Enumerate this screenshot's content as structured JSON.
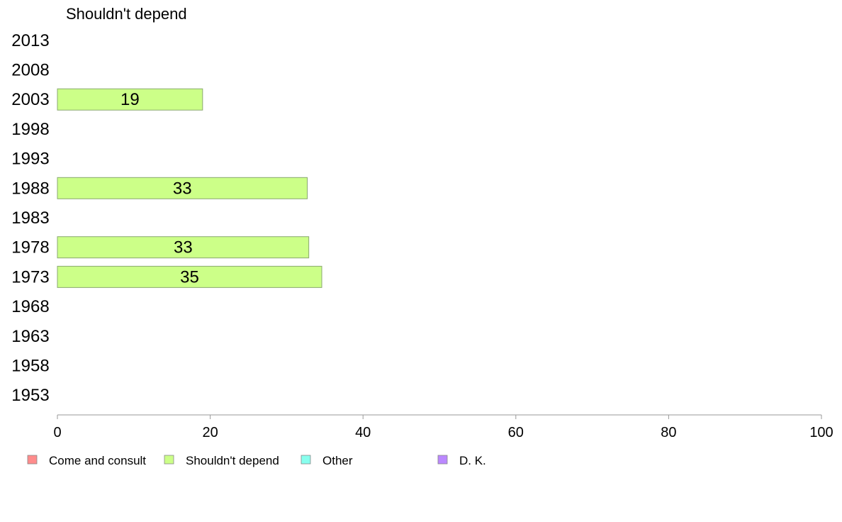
{
  "chart_data": {
    "type": "bar",
    "orientation": "horizontal",
    "panel_title": "Shouldn't depend",
    "categories": [
      "2013",
      "2008",
      "2003",
      "1998",
      "1993",
      "1988",
      "1983",
      "1978",
      "1973",
      "1968",
      "1963",
      "1958",
      "1953"
    ],
    "series": [
      {
        "name": "Shouldn't depend",
        "color": "#ccff88",
        "values": [
          null,
          null,
          19,
          null,
          null,
          32.7,
          null,
          32.9,
          34.6,
          null,
          null,
          null,
          null
        ],
        "labels": [
          "",
          "",
          "19",
          "",
          "",
          "33",
          "",
          "33",
          "35",
          "",
          "",
          "",
          ""
        ]
      }
    ],
    "xlim": [
      0,
      100
    ],
    "xticks": [
      "0",
      "20",
      "40",
      "60",
      "80",
      "100"
    ],
    "legend": {
      "position": "bottom",
      "entries": [
        {
          "label": "Come and consult",
          "color": "#ff8c8c"
        },
        {
          "label": "Shouldn't depend",
          "color": "#ccff88"
        },
        {
          "label": "Other",
          "color": "#88ffee"
        },
        {
          "label": "D. K.",
          "color": "#bb88ff"
        }
      ]
    }
  }
}
